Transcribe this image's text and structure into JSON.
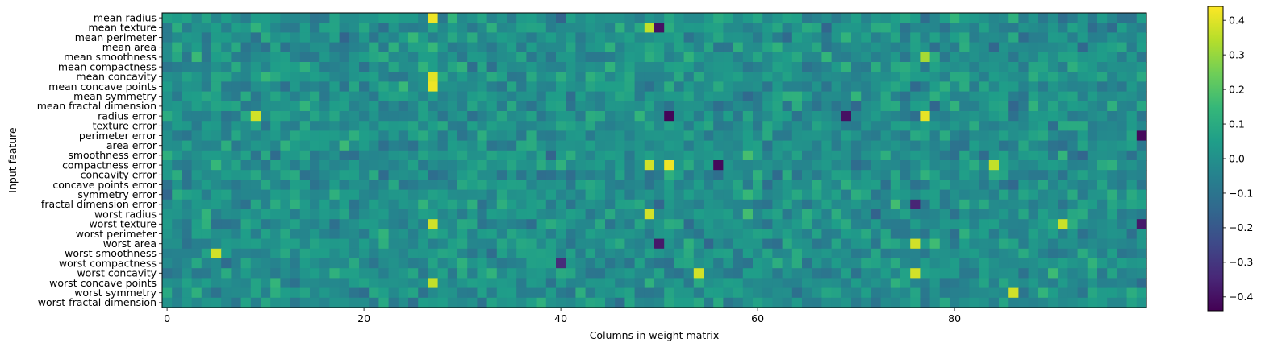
{
  "chart_data": {
    "type": "heatmap",
    "title": "",
    "xlabel": "Columns in weight matrix",
    "ylabel": "Input feature",
    "y_categories": [
      "mean radius",
      "mean texture",
      "mean perimeter",
      "mean area",
      "mean smoothness",
      "mean compactness",
      "mean concavity",
      "mean concave points",
      "mean symmetry",
      "mean fractal dimension",
      "radius error",
      "texture error",
      "perimeter error",
      "area error",
      "smoothness error",
      "compactness error",
      "concavity error",
      "concave points error",
      "symmetry error",
      "fractal dimension error",
      "worst radius",
      "worst texture",
      "worst perimeter",
      "worst area",
      "worst smoothness",
      "worst compactness",
      "worst concavity",
      "worst concave points",
      "worst symmetry",
      "worst fractal dimension"
    ],
    "x_range": [
      0,
      99
    ],
    "x_ticks": [
      0,
      20,
      40,
      60,
      80
    ],
    "colormap": "viridis",
    "vmin": -0.44,
    "vmax": 0.44,
    "colorbar_ticks": [
      "0.4",
      "0.3",
      "0.2",
      "0.1",
      "0.0",
      "−0.1",
      "−0.2",
      "−0.3",
      "−0.4"
    ],
    "highlights": [
      {
        "row": 0,
        "col": 27,
        "value": 0.42
      },
      {
        "row": 6,
        "col": 27,
        "value": 0.4
      },
      {
        "row": 7,
        "col": 27,
        "value": 0.42
      },
      {
        "row": 1,
        "col": 49,
        "value": 0.36
      },
      {
        "row": 1,
        "col": 50,
        "value": -0.4
      },
      {
        "row": 10,
        "col": 9,
        "value": 0.38
      },
      {
        "row": 10,
        "col": 51,
        "value": -0.43
      },
      {
        "row": 10,
        "col": 77,
        "value": 0.41
      },
      {
        "row": 4,
        "col": 77,
        "value": 0.32
      },
      {
        "row": 15,
        "col": 49,
        "value": 0.38
      },
      {
        "row": 15,
        "col": 51,
        "value": 0.42
      },
      {
        "row": 15,
        "col": 56,
        "value": -0.42
      },
      {
        "row": 15,
        "col": 84,
        "value": 0.36
      },
      {
        "row": 20,
        "col": 49,
        "value": 0.38
      },
      {
        "row": 21,
        "col": 27,
        "value": 0.38
      },
      {
        "row": 21,
        "col": 91,
        "value": 0.37
      },
      {
        "row": 23,
        "col": 76,
        "value": 0.38
      },
      {
        "row": 23,
        "col": 50,
        "value": -0.38
      },
      {
        "row": 24,
        "col": 5,
        "value": 0.38
      },
      {
        "row": 26,
        "col": 54,
        "value": 0.38
      },
      {
        "row": 26,
        "col": 76,
        "value": 0.38
      },
      {
        "row": 27,
        "col": 27,
        "value": 0.36
      },
      {
        "row": 28,
        "col": 86,
        "value": 0.38
      },
      {
        "row": 10,
        "col": 69,
        "value": -0.4
      },
      {
        "row": 12,
        "col": 99,
        "value": -0.42
      },
      {
        "row": 19,
        "col": 76,
        "value": -0.35
      },
      {
        "row": 21,
        "col": 99,
        "value": -0.38
      },
      {
        "row": 25,
        "col": 40,
        "value": -0.33
      }
    ],
    "note_values": "Background cell values are a pseudo-random field in [-0.44, 0.44]; highlights are estimated standout cells."
  }
}
